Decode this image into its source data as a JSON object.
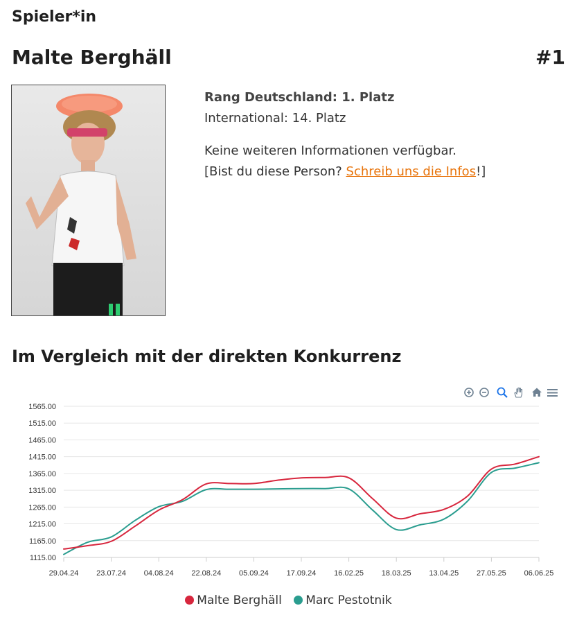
{
  "header": {
    "section_label": "Spieler*in",
    "player_name": "Malte Berghäll",
    "rank_badge": "#1"
  },
  "info": {
    "rank_germany": "Rang Deutschland: 1. Platz",
    "rank_international": "International: 14. Platz",
    "no_info": "Keine weiteren Informationen verfügbar.",
    "ask_prefix": "[Bist du diese Person? ",
    "ask_link": "Schreib uns die Infos",
    "ask_suffix": "!]"
  },
  "comparison": {
    "title": "Im Vergleich mit der direkten Konkurrenz"
  },
  "toolbar": {
    "icons": [
      "zoom-in-icon",
      "zoom-out-icon",
      "selection-zoom-icon",
      "pan-icon",
      "reset-home-icon",
      "menu-icon"
    ]
  },
  "colors": {
    "series_1": "#d7263d",
    "series_2": "#2a9d8f",
    "link": "#e8750d"
  },
  "chart_data": {
    "type": "line",
    "title": "",
    "xlabel": "",
    "ylabel": "",
    "categories": [
      "29.04.24",
      "23.07.24",
      "04.08.24",
      "22.08.24",
      "05.09.24",
      "17.09.24",
      "16.02.25",
      "18.03.25",
      "13.04.25",
      "27.05.25",
      "06.06.25"
    ],
    "ylim": [
      1115,
      1565
    ],
    "yticks": [
      "1565.00",
      "1515.00",
      "1465.00",
      "1415.00",
      "1365.00",
      "1315.00",
      "1265.00",
      "1215.00",
      "1165.00",
      "1115.00"
    ],
    "grid": true,
    "legend_position": "bottom",
    "series": [
      {
        "name": "Malte Berghäll",
        "points": [
          [
            0,
            1140
          ],
          [
            0.5,
            1150
          ],
          [
            1,
            1163
          ],
          [
            1.5,
            1208
          ],
          [
            2,
            1256
          ],
          [
            2.5,
            1287
          ],
          [
            3,
            1334
          ],
          [
            3.5,
            1335
          ],
          [
            4,
            1335
          ],
          [
            4.5,
            1345
          ],
          [
            5,
            1352
          ],
          [
            5.5,
            1353
          ],
          [
            6,
            1352
          ],
          [
            6.5,
            1290
          ],
          [
            7,
            1232
          ],
          [
            7.5,
            1245
          ],
          [
            8,
            1258
          ],
          [
            8.5,
            1298
          ],
          [
            9,
            1378
          ],
          [
            9.5,
            1393
          ],
          [
            10,
            1415
          ]
        ]
      },
      {
        "name": "Marc Pestotnik",
        "points": [
          [
            0,
            1124
          ],
          [
            0.5,
            1160
          ],
          [
            1,
            1176
          ],
          [
            1.5,
            1225
          ],
          [
            2,
            1266
          ],
          [
            2.5,
            1282
          ],
          [
            3,
            1317
          ],
          [
            3.5,
            1318
          ],
          [
            4,
            1318
          ],
          [
            4.5,
            1319
          ],
          [
            5,
            1320
          ],
          [
            5.5,
            1320
          ],
          [
            6,
            1319
          ],
          [
            6.5,
            1256
          ],
          [
            7,
            1198
          ],
          [
            7.5,
            1212
          ],
          [
            8,
            1229
          ],
          [
            8.5,
            1283
          ],
          [
            9,
            1368
          ],
          [
            9.5,
            1381
          ],
          [
            10,
            1397
          ]
        ]
      }
    ]
  }
}
